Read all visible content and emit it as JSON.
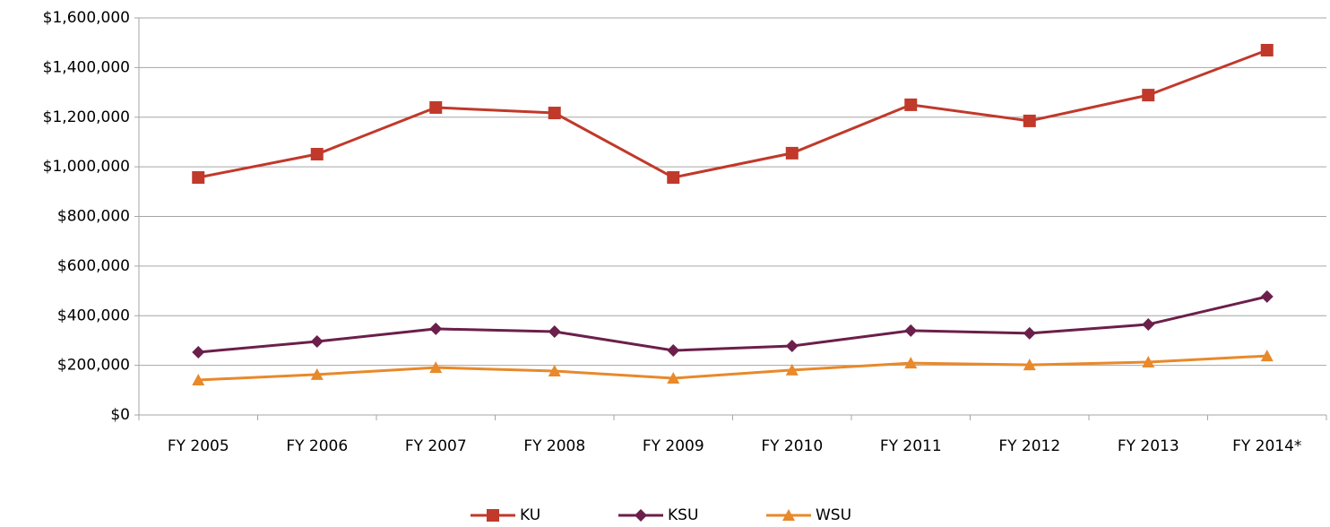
{
  "chart_data": {
    "type": "line",
    "categories": [
      "FY 2005",
      "FY 2006",
      "FY 2007",
      "FY 2008",
      "FY 2009",
      "FY 2010",
      "FY 2011",
      "FY 2012",
      "FY 2013",
      "FY 2014*"
    ],
    "series": [
      {
        "name": "KU",
        "color": "#c0392b",
        "marker": "square",
        "values": [
          957000,
          1051000,
          1239000,
          1217000,
          957000,
          1055000,
          1250000,
          1185000,
          1289000,
          1470000
        ]
      },
      {
        "name": "KSU",
        "color": "#6b1f4a",
        "marker": "diamond",
        "values": [
          253000,
          296000,
          347000,
          336000,
          260000,
          278000,
          340000,
          329000,
          365000,
          477000
        ]
      },
      {
        "name": "WSU",
        "color": "#e8892a",
        "marker": "triangle",
        "values": [
          141000,
          163000,
          191000,
          177000,
          148000,
          181000,
          209000,
          202000,
          213000,
          238000
        ]
      }
    ],
    "ylim": [
      0,
      1600000
    ],
    "yticks": [
      {
        "value": 0,
        "label": "$0"
      },
      {
        "value": 200000,
        "label": "$200,000"
      },
      {
        "value": 400000,
        "label": "$400,000"
      },
      {
        "value": 600000,
        "label": "$600,000"
      },
      {
        "value": 800000,
        "label": "$800,000"
      },
      {
        "value": 1000000,
        "label": "$1,000,000"
      },
      {
        "value": 1200000,
        "label": "$1,200,000"
      },
      {
        "value": 1400000,
        "label": "$1,400,000"
      },
      {
        "value": 1600000,
        "label": "$1,600,000"
      }
    ],
    "grid": true,
    "legend": "bottom"
  }
}
